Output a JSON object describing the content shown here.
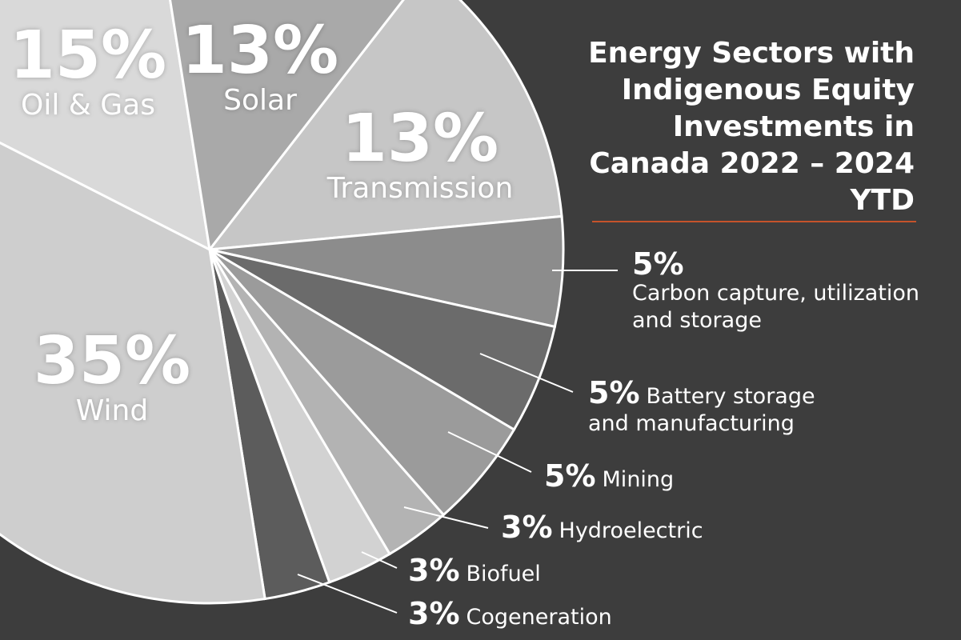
{
  "chart_data": {
    "type": "pie",
    "title": "Energy Sectors with Indigenous Equity Investments in Canada 2022 – 2024 YTD",
    "categories": [
      "Oil & Gas",
      "Solar",
      "Transmission",
      "Carbon capture, utilization and storage",
      "Battery storage and manufacturing",
      "Mining",
      "Hydroelectric",
      "Biofuel",
      "Cogeneration",
      "Wind"
    ],
    "values": [
      15,
      13,
      13,
      5,
      5,
      5,
      3,
      3,
      3,
      35
    ],
    "value_labels": [
      "15%",
      "13%",
      "13%",
      "5%",
      "5%",
      "5%",
      "3%",
      "3%",
      "3%",
      "35%"
    ],
    "colors": [
      "#d9d9d9",
      "#a9a9a9",
      "#c6c6c6",
      "#8c8c8c",
      "#6b6b6b",
      "#9b9b9b",
      "#b3b3b3",
      "#d2d2d2",
      "#5c5c5c",
      "#cecece"
    ]
  }
}
